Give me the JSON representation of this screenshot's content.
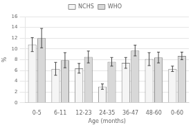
{
  "chart_data": {
    "type": "bar",
    "categories": [
      "0-5",
      "6-11",
      "12-23",
      "24-35",
      "36-47",
      "48-60",
      "0-60"
    ],
    "series": [
      {
        "name": "NCHS",
        "color": "#f5f5f5",
        "values": [
          10.8,
          6.3,
          6.4,
          3.0,
          7.4,
          8.1,
          6.3
        ],
        "errors": [
          1.3,
          1.2,
          0.9,
          0.5,
          1.0,
          1.2,
          0.5
        ]
      },
      {
        "name": "WHO",
        "color": "#d8d8d8",
        "values": [
          12.0,
          7.9,
          8.5,
          7.6,
          9.7,
          8.4,
          8.7
        ],
        "errors": [
          1.8,
          1.4,
          1.1,
          0.8,
          1.0,
          1.0,
          0.7
        ]
      }
    ],
    "xlabel": "Age (months)",
    "ylabel": "%",
    "ylim": [
      0,
      16
    ],
    "yticks": [
      0,
      2,
      4,
      6,
      8,
      10,
      12,
      14,
      16
    ],
    "grid": true,
    "legend": "top"
  }
}
